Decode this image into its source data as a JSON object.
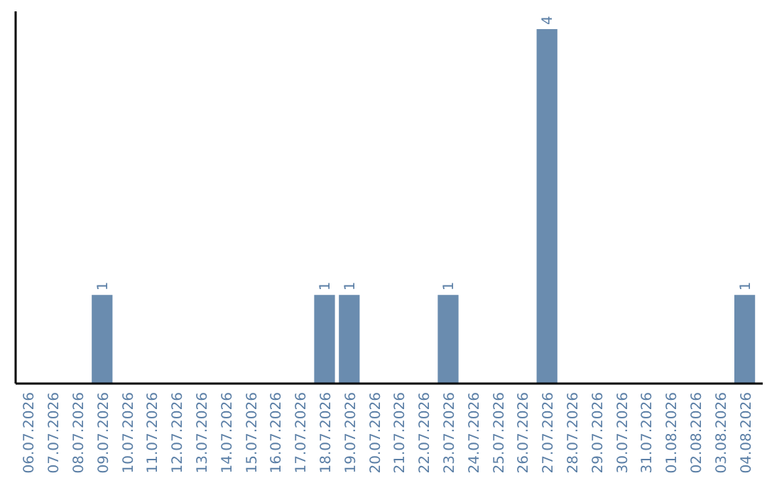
{
  "chart_data": {
    "type": "bar",
    "categories": [
      "06.07.2026",
      "07.07.2026",
      "08.07.2026",
      "09.07.2026",
      "10.07.2026",
      "11.07.2026",
      "12.07.2026",
      "13.07.2026",
      "14.07.2026",
      "15.07.2026",
      "16.07.2026",
      "17.07.2026",
      "18.07.2026",
      "19.07.2026",
      "20.07.2026",
      "21.07.2026",
      "22.07.2026",
      "23.07.2026",
      "24.07.2026",
      "25.07.2026",
      "26.07.2026",
      "27.07.2026",
      "28.07.2026",
      "29.07.2026",
      "30.07.2026",
      "31.07.2026",
      "01.08.2026",
      "02.08.2026",
      "03.08.2026",
      "04.08.2026"
    ],
    "values": [
      0,
      0,
      0,
      1,
      0,
      0,
      0,
      0,
      0,
      0,
      0,
      0,
      1,
      1,
      0,
      0,
      0,
      1,
      0,
      0,
      0,
      4,
      0,
      0,
      0,
      0,
      0,
      0,
      0,
      1
    ],
    "value_labels": [
      null,
      null,
      null,
      "1",
      null,
      null,
      null,
      null,
      null,
      null,
      null,
      null,
      "1",
      "1",
      null,
      null,
      null,
      "1",
      null,
      null,
      null,
      "4",
      null,
      null,
      null,
      null,
      null,
      null,
      null,
      "1"
    ],
    "color": "#6a8caf",
    "ylim": [
      0,
      4.2
    ],
    "tick_labels": "x"
  }
}
